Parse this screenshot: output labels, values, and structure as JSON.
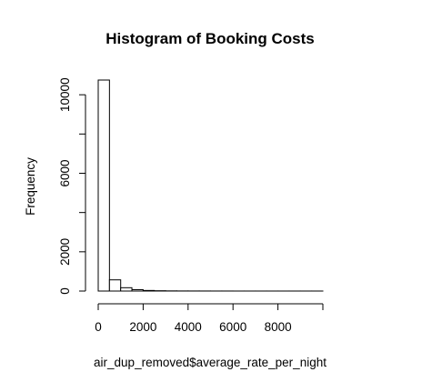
{
  "chart_data": {
    "type": "bar",
    "title": "Histogram of Booking Costs",
    "xlabel": "air_dup_removed$average_rate_per_night",
    "ylabel": "Frequency",
    "bin_width": 500,
    "bins": [
      {
        "start": 0,
        "end": 500,
        "count": 10750
      },
      {
        "start": 500,
        "end": 1000,
        "count": 570
      },
      {
        "start": 1000,
        "end": 1500,
        "count": 170
      },
      {
        "start": 1500,
        "end": 2000,
        "count": 70
      },
      {
        "start": 2000,
        "end": 2500,
        "count": 30
      },
      {
        "start": 2500,
        "end": 3000,
        "count": 15
      },
      {
        "start": 3000,
        "end": 3500,
        "count": 8
      },
      {
        "start": 3500,
        "end": 4000,
        "count": 5
      },
      {
        "start": 4000,
        "end": 4500,
        "count": 4
      },
      {
        "start": 4500,
        "end": 5000,
        "count": 3
      },
      {
        "start": 5000,
        "end": 5500,
        "count": 2
      },
      {
        "start": 5500,
        "end": 6000,
        "count": 2
      },
      {
        "start": 6000,
        "end": 6500,
        "count": 1
      },
      {
        "start": 6500,
        "end": 7000,
        "count": 1
      },
      {
        "start": 7000,
        "end": 7500,
        "count": 1
      },
      {
        "start": 7500,
        "end": 8000,
        "count": 1
      },
      {
        "start": 8000,
        "end": 8500,
        "count": 1
      },
      {
        "start": 8500,
        "end": 9000,
        "count": 1
      },
      {
        "start": 9000,
        "end": 9500,
        "count": 1
      },
      {
        "start": 9500,
        "end": 10000,
        "count": 1
      }
    ],
    "xlim": [
      0,
      10000
    ],
    "ylim": [
      0,
      10750
    ],
    "x_ticks": [
      0,
      2000,
      4000,
      6000,
      8000
    ],
    "y_ticks": [
      0,
      2000,
      6000,
      10000
    ],
    "grid": false,
    "legend": "none"
  }
}
